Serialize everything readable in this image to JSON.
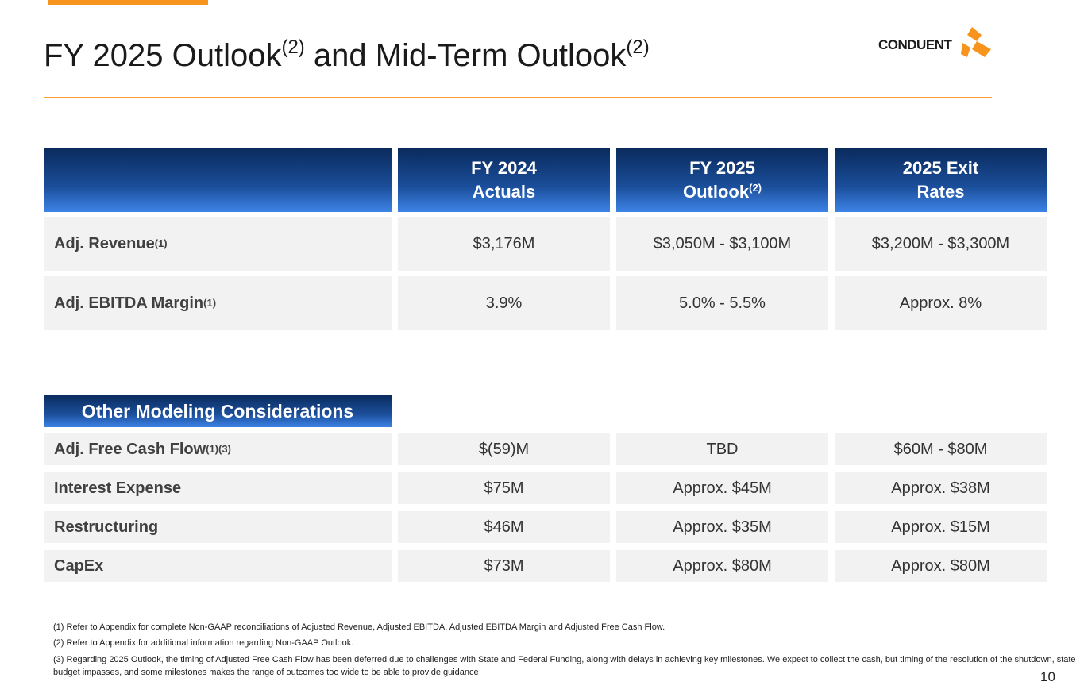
{
  "header": {
    "title": [
      "FY 2025 Outlook",
      "(2)",
      "and Mid-Term Outlook",
      "(2)"
    ],
    "logo": "CONDUENT"
  },
  "table": {
    "columns": [
      [
        "FY 2024",
        "Actuals"
      ],
      [
        "FY 2025",
        "Outlook",
        "(2)"
      ],
      [
        "2025 Exit",
        "Rates"
      ]
    ],
    "rows": [
      {
        "label": "Adj. Revenue",
        "note": "(1)",
        "cells": [
          "$3,176M",
          "$3,050M - $3,100M",
          "$3,200M - $3,300M"
        ]
      },
      {
        "label": "Adj. EBITDA Margin",
        "note": "(1)",
        "cells": [
          "3.9%",
          "5.0% - 5.5%",
          "Approx. 8%"
        ]
      }
    ]
  },
  "other": {
    "title": "Other Modeling Considerations",
    "rows": [
      {
        "label": "Adj. Free Cash Flow",
        "note": "(1)(3)",
        "cells": [
          "$(59)M",
          "TBD",
          "$60M - $80M"
        ]
      },
      {
        "label": "Interest Expense",
        "cells": [
          "$75M",
          "Approx. $45M",
          "Approx. $38M"
        ]
      },
      {
        "label": "Restructuring",
        "cells": [
          "$46M",
          "Approx. $35M",
          "Approx. $15M"
        ]
      },
      {
        "label": "CapEx",
        "cells": [
          "$73M",
          "Approx. $80M",
          "Approx. $80M"
        ]
      }
    ]
  },
  "footnotes": [
    "(1)  Refer to Appendix for complete Non-GAAP reconciliations of Adjusted Revenue,  Adjusted EBITDA, Adjusted EBITDA Margin and Adjusted Free Cash Flow.",
    "(2)  Refer to Appendix for additional information regarding Non-GAAP Outlook.",
    "(3) Regarding 2025 Outlook, the timing of Adjusted Free Cash Flow has been deferred due to challenges with State and Federal Funding, along with delays in achieving key milestones.  We expect to collect the cash, but timing of the resolution of the shutdown, state budget impasses, and some milestones makes the range of outcomes too wide to be able to provide guidance"
  ],
  "page_number": "10"
}
